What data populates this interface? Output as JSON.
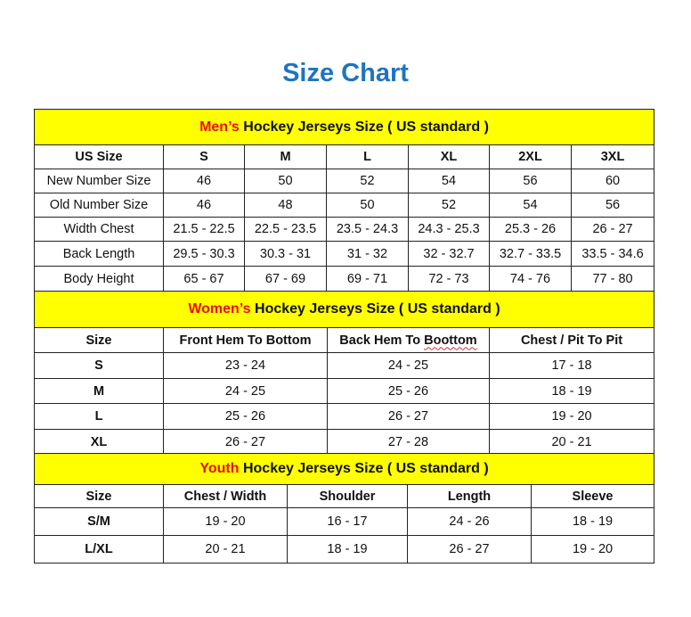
{
  "title": "Size Chart",
  "accent_color": "#1f74c0",
  "band_color": "#ffff00",
  "highlight_color": "#e8100c",
  "mens": {
    "band_highlight": "Men’s",
    "band_text": " Hockey Jerseys Size ( US standard )",
    "headers": [
      "US Size",
      "S",
      "M",
      "L",
      "XL",
      "2XL",
      "3XL"
    ],
    "rows": [
      [
        "New Number Size",
        "46",
        "50",
        "52",
        "54",
        "56",
        "60"
      ],
      [
        "Old Number Size",
        "46",
        "48",
        "50",
        "52",
        "54",
        "56"
      ],
      [
        "Width Chest",
        "21.5 - 22.5",
        "22.5 - 23.5",
        "23.5 - 24.3",
        "24.3 - 25.3",
        "25.3 - 26",
        "26 - 27"
      ],
      [
        "Back Length",
        "29.5 - 30.3",
        "30.3 - 31",
        "31 - 32",
        "32 - 32.7",
        "32.7 - 33.5",
        "33.5 - 34.6"
      ],
      [
        "Body Height",
        "65 - 67",
        "67 - 69",
        "69 - 71",
        "72 - 73",
        "74 - 76",
        "77 - 80"
      ]
    ]
  },
  "womens": {
    "band_highlight": "Women’s",
    "band_text": " Hockey Jerseys Size ( US standard )",
    "headers": [
      "Size",
      "Front Hem To Bottom",
      "Back Hem To ",
      "Chest / Pit To Pit"
    ],
    "header_misspelled": "Boottom",
    "rows": [
      [
        "S",
        "23 - 24",
        "24 - 25",
        "17 - 18"
      ],
      [
        "M",
        "24 - 25",
        "25 - 26",
        "18 - 19"
      ],
      [
        "L",
        "25 - 26",
        "26 - 27",
        "19 - 20"
      ],
      [
        "XL",
        "26 - 27",
        "27 - 28",
        "20 - 21"
      ]
    ]
  },
  "youth": {
    "band_highlight": "Youth",
    "band_text": " Hockey Jerseys Size ( US standard )",
    "headers": [
      "Size",
      "Chest / Width",
      "Shoulder",
      "Length",
      "Sleeve"
    ],
    "rows": [
      [
        "S/M",
        "19 - 20",
        "16 - 17",
        "24 - 26",
        "18 - 19"
      ],
      [
        "L/XL",
        "20 - 21",
        "18 - 19",
        "26 - 27",
        "19 - 20"
      ]
    ]
  }
}
